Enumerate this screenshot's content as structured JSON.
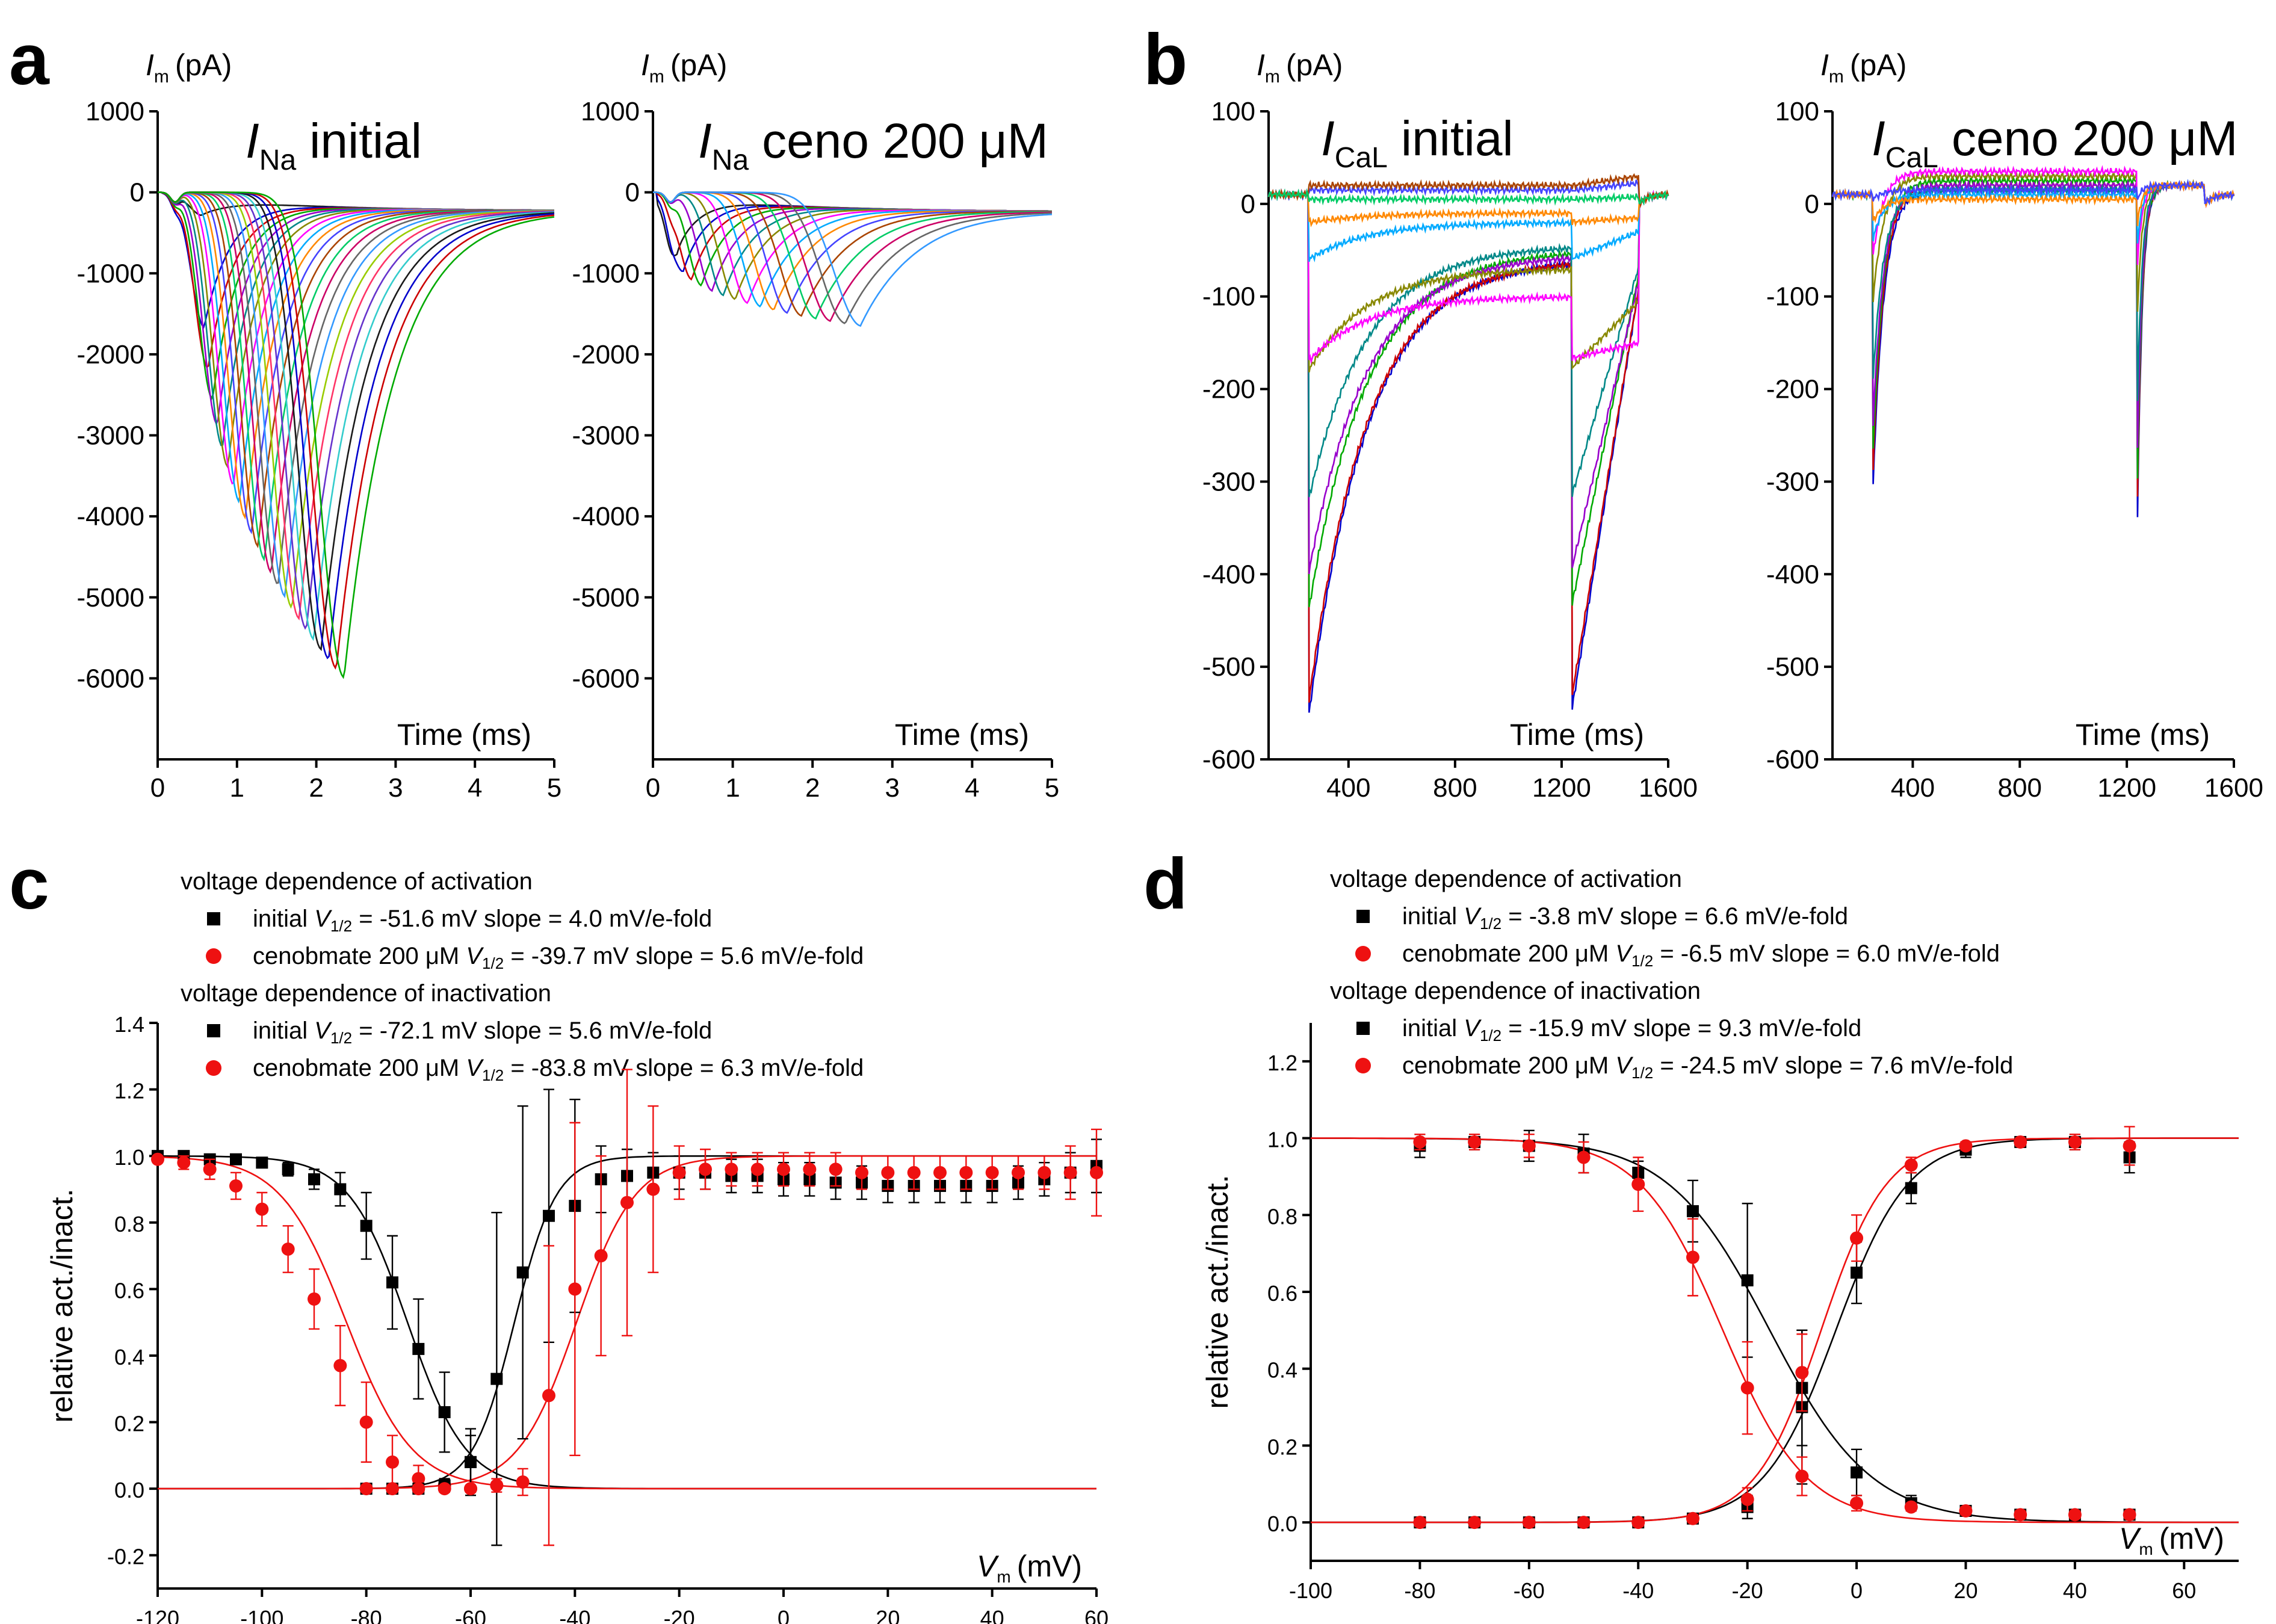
{
  "panels": {
    "a": "a",
    "b": "b",
    "c": "c",
    "d": "d"
  },
  "trace_colors": [
    "#1a1a1a",
    "#0000cc",
    "#cc0000",
    "#00aa00",
    "#9900cc",
    "#008888",
    "#888800",
    "#ff00ff",
    "#00aaff",
    "#ff8800",
    "#4444ff",
    "#aa4400",
    "#00cc66",
    "#cc0066",
    "#666666",
    "#3399ff",
    "#99cc00",
    "#ff3366",
    "#6633cc",
    "#33cccc"
  ],
  "colors": {
    "initial": "#000000",
    "ceno": "#ee1111"
  },
  "chart_data": [
    {
      "id": "a1",
      "type": "line",
      "ylabel_main": "I",
      "ylabel_sub": "m",
      "ylabel_unit": "(pA)",
      "title_main": "I",
      "title_sub": "Na",
      "title_rest": "initial",
      "xlabel": "Time (ms)",
      "xlim": [
        0,
        5
      ],
      "ylim": [
        -7000,
        1000
      ],
      "xticks": [
        "0",
        "1",
        "2",
        "3",
        "4",
        "5"
      ],
      "yticks": [
        "1000",
        "0",
        "-1000",
        "-2000",
        "-3000",
        "-4000",
        "-5000",
        "-6000"
      ],
      "traces": {
        "n": 24,
        "peak_time_start": 0.55,
        "peak_time_end": 2.35,
        "peak_amp_start": -250,
        "peak_amp_end": -5900,
        "final": -230
      }
    },
    {
      "id": "a2",
      "type": "line",
      "ylabel_main": "I",
      "ylabel_sub": "m",
      "ylabel_unit": "(pA)",
      "title_main": "I",
      "title_sub": "Na",
      "title_rest": "ceno 200 μM",
      "xlabel": "Time (ms)",
      "xlim": [
        0,
        5
      ],
      "ylim": [
        -7000,
        1000
      ],
      "xticks": [
        "0",
        "1",
        "2",
        "3",
        "4",
        "5"
      ],
      "yticks": [
        "1000",
        "0",
        "-1000",
        "-2000",
        "-3000",
        "-4000",
        "-5000",
        "-6000"
      ],
      "traces": {
        "n": 16,
        "peak_time_start": 0.3,
        "peak_time_end": 2.6,
        "peak_amp_start": -700,
        "peak_amp_end": -1550,
        "final": -240
      }
    },
    {
      "id": "b1",
      "type": "line",
      "ylabel_main": "I",
      "ylabel_sub": "m",
      "ylabel_unit": "(pA)",
      "title_main": "I",
      "title_sub": "CaL",
      "title_rest": "initial",
      "xlabel": "Time (ms)",
      "xlim": [
        100,
        1600
      ],
      "ylim": [
        -600,
        100
      ],
      "xticks": [
        "400",
        "800",
        "1200",
        "1600"
      ],
      "yticks": [
        "100",
        "0",
        "-100",
        "-200",
        "-300",
        "-400",
        "-500",
        "-600"
      ],
      "traces": {
        "n": 12,
        "peaks": [
          -555,
          -540,
          -440,
          -400,
          -320,
          -180,
          -170,
          -60,
          -20,
          15,
          20,
          5
        ],
        "steady": [
          -60,
          -60,
          -50,
          -55,
          -45,
          -70,
          -100,
          -20,
          -10,
          15,
          20,
          5
        ]
      }
    },
    {
      "id": "b2",
      "type": "line",
      "ylabel_main": "I",
      "ylabel_sub": "m",
      "ylabel_unit": "(pA)",
      "title_main": "I",
      "title_sub": "CaL",
      "title_rest": "ceno 200 μM",
      "xlabel": "Time (ms)",
      "xlim": [
        100,
        1600
      ],
      "ylim": [
        -600,
        100
      ],
      "xticks": [
        "400",
        "800",
        "1200",
        "1600"
      ],
      "yticks": [
        "100",
        "0",
        "-100",
        "-200",
        "-300",
        "-400",
        "-500",
        "-600"
      ],
      "traces": {
        "n": 10,
        "peaks": [
          -320,
          -300,
          -280,
          -250,
          -200,
          -110,
          -60,
          -40,
          -20,
          5
        ],
        "steady": [
          15,
          20,
          25,
          20,
          15,
          30,
          35,
          10,
          5,
          15
        ]
      }
    },
    {
      "id": "c",
      "type": "scatter",
      "xlabel_main": "V",
      "xlabel_sub": "m",
      "xlabel_unit": "(mV)",
      "ylabel": "relative act./inact.",
      "xlim": [
        -120,
        60
      ],
      "ylim": [
        -0.3,
        1.4
      ],
      "xticks": [
        "-120",
        "-100",
        "-80",
        "-60",
        "-40",
        "-20",
        "0",
        "20",
        "40",
        "60"
      ],
      "yticks": [
        "1.4",
        "1.2",
        "1.0",
        "0.8",
        "0.6",
        "0.4",
        "0.2",
        "0.0",
        "-0.2"
      ],
      "legend": {
        "act_header": "voltage dependence of activation",
        "act_init": {
          "label": "initial ",
          "V": "V",
          "sub": "1/2",
          "rest": " = -51.6 mV  slope = 4.0 mV/e-fold"
        },
        "act_ceno": {
          "label": "cenobmate 200 μM ",
          "V": "V",
          "sub": "1/2",
          "rest": " = -39.7 mV  slope = 5.6 mV/e-fold"
        },
        "inact_header": "voltage dependence of inactivation",
        "inact_init": {
          "label": "initial ",
          "V": "V",
          "sub": "1/2",
          "rest": " = -72.1 mV  slope = 5.6 mV/e-fold"
        },
        "inact_ceno": {
          "label": "cenobmate 200 μM ",
          "V": "V",
          "sub": "1/2",
          "rest": " = -83.8 mV  slope = 6.3 mV/e-fold"
        }
      },
      "fits": {
        "act_init": {
          "v12": -51.6,
          "k": 4.0
        },
        "act_ceno": {
          "v12": -39.7,
          "k": 5.6
        },
        "inact_init": {
          "v12": -72.1,
          "k": 5.6
        },
        "inact_ceno": {
          "v12": -83.8,
          "k": 6.3
        }
      },
      "series": [
        {
          "name": "inactivation initial",
          "color": "initial",
          "marker": "square",
          "x": [
            -120,
            -115,
            -110,
            -105,
            -100,
            -95,
            -90,
            -85,
            -80,
            -75,
            -70,
            -65,
            -60
          ],
          "y": [
            1.0,
            1.0,
            0.99,
            0.99,
            0.98,
            0.96,
            0.93,
            0.9,
            0.79,
            0.62,
            0.42,
            0.23,
            0.08
          ],
          "err": [
            0.01,
            0.01,
            0.01,
            0.01,
            0.01,
            0.02,
            0.03,
            0.05,
            0.1,
            0.14,
            0.15,
            0.12,
            0.08
          ]
        },
        {
          "name": "inactivation ceno",
          "color": "ceno",
          "marker": "circle",
          "x": [
            -120,
            -115,
            -110,
            -105,
            -100,
            -95,
            -90,
            -85,
            -80,
            -75,
            -70,
            -65,
            -60
          ],
          "y": [
            0.99,
            0.98,
            0.96,
            0.91,
            0.84,
            0.72,
            0.57,
            0.37,
            0.2,
            0.08,
            0.03,
            0.01,
            0.0
          ],
          "err": [
            0.01,
            0.02,
            0.03,
            0.04,
            0.05,
            0.07,
            0.09,
            0.12,
            0.12,
            0.08,
            0.04,
            0.02,
            0.01
          ]
        },
        {
          "name": "activation initial",
          "color": "initial",
          "marker": "square",
          "x": [
            -80,
            -75,
            -70,
            -65,
            -60,
            -55,
            -50,
            -45,
            -40,
            -35,
            -30,
            -25,
            -20,
            -15,
            -10,
            -5,
            0,
            5,
            10,
            15,
            20,
            25,
            30,
            35,
            40,
            45,
            50,
            55,
            60
          ],
          "y": [
            0.0,
            0.0,
            0.0,
            0.01,
            0.08,
            0.33,
            0.65,
            0.82,
            0.85,
            0.93,
            0.94,
            0.95,
            0.95,
            0.95,
            0.94,
            0.94,
            0.93,
            0.93,
            0.92,
            0.92,
            0.91,
            0.91,
            0.91,
            0.91,
            0.91,
            0.92,
            0.93,
            0.95,
            0.97
          ],
          "err": [
            0.01,
            0.01,
            0.01,
            0.02,
            0.1,
            0.5,
            0.5,
            0.38,
            0.32,
            0.1,
            0.08,
            0.06,
            0.05,
            0.05,
            0.05,
            0.05,
            0.05,
            0.05,
            0.05,
            0.05,
            0.05,
            0.05,
            0.05,
            0.05,
            0.05,
            0.05,
            0.05,
            0.06,
            0.08
          ]
        },
        {
          "name": "activation ceno",
          "color": "ceno",
          "marker": "circle",
          "x": [
            -80,
            -75,
            -70,
            -65,
            -60,
            -55,
            -50,
            -45,
            -40,
            -35,
            -30,
            -25,
            -20,
            -15,
            -10,
            -5,
            0,
            5,
            10,
            15,
            20,
            25,
            30,
            35,
            40,
            45,
            50,
            55,
            60
          ],
          "y": [
            0.0,
            0.0,
            0.0,
            0.0,
            0.0,
            0.01,
            0.02,
            0.28,
            0.6,
            0.7,
            0.86,
            0.9,
            0.95,
            0.96,
            0.96,
            0.96,
            0.96,
            0.96,
            0.96,
            0.95,
            0.95,
            0.95,
            0.95,
            0.95,
            0.95,
            0.95,
            0.95,
            0.95,
            0.95
          ],
          "err": [
            0.01,
            0.01,
            0.01,
            0.01,
            0.01,
            0.02,
            0.04,
            0.45,
            0.5,
            0.3,
            0.4,
            0.25,
            0.08,
            0.06,
            0.05,
            0.05,
            0.05,
            0.05,
            0.05,
            0.05,
            0.05,
            0.05,
            0.05,
            0.05,
            0.05,
            0.05,
            0.05,
            0.08,
            0.13
          ]
        }
      ]
    },
    {
      "id": "d",
      "type": "scatter",
      "xlabel_main": "V",
      "xlabel_sub": "m",
      "xlabel_unit": "(mV)",
      "ylabel": "relative act./inact.",
      "xlim": [
        -100,
        70
      ],
      "ylim": [
        -0.1,
        1.3
      ],
      "xticks": [
        "-100",
        "-80",
        "-60",
        "-40",
        "-20",
        "0",
        "20",
        "40",
        "60"
      ],
      "yticks": [
        "1.2",
        "1.0",
        "0.8",
        "0.6",
        "0.4",
        "0.2",
        "0.0"
      ],
      "legend": {
        "act_header": "voltage dependence of activation",
        "act_init": {
          "label": "initial ",
          "V": "V",
          "sub": "1/2",
          "rest": " = -3.8 mV  slope = 6.6 mV/e-fold"
        },
        "act_ceno": {
          "label": "cenobmate 200 μM ",
          "V": "V",
          "sub": "1/2",
          "rest": " = -6.5 mV  slope = 6.0 mV/e-fold"
        },
        "inact_header": "voltage dependence of inactivation",
        "inact_init": {
          "label": "initial ",
          "V": "V",
          "sub": "1/2",
          "rest": " = -15.9 mV  slope = 9.3 mV/e-fold"
        },
        "inact_ceno": {
          "label": "cenobmate 200 μM ",
          "V": "V",
          "sub": "1/2",
          "rest": " = -24.5 mV  slope = 7.6 mV/e-fold"
        }
      },
      "fits": {
        "act_init": {
          "v12": -3.8,
          "k": 6.6
        },
        "act_ceno": {
          "v12": -6.5,
          "k": 6.0
        },
        "inact_init": {
          "v12": -15.9,
          "k": 9.3
        },
        "inact_ceno": {
          "v12": -24.5,
          "k": 7.6
        }
      },
      "series": [
        {
          "name": "inactivation initial",
          "color": "initial",
          "marker": "square",
          "x": [
            -80,
            -70,
            -60,
            -50,
            -40,
            -30,
            -20,
            -10,
            0,
            10,
            20,
            30,
            40,
            50
          ],
          "y": [
            0.98,
            0.99,
            0.98,
            0.96,
            0.91,
            0.81,
            0.63,
            0.3,
            0.13,
            0.05,
            0.03,
            0.02,
            0.02,
            0.02
          ],
          "err": [
            0.03,
            0.02,
            0.04,
            0.05,
            0.03,
            0.08,
            0.2,
            0.2,
            0.06,
            0.02,
            0.01,
            0.01,
            0.01,
            0.01
          ]
        },
        {
          "name": "inactivation ceno",
          "color": "ceno",
          "marker": "circle",
          "x": [
            -80,
            -70,
            -60,
            -50,
            -40,
            -30,
            -20,
            -10,
            0,
            10,
            20,
            30,
            40,
            50
          ],
          "y": [
            0.99,
            0.99,
            0.98,
            0.95,
            0.88,
            0.69,
            0.35,
            0.12,
            0.05,
            0.04,
            0.03,
            0.02,
            0.02,
            0.02
          ],
          "err": [
            0.02,
            0.02,
            0.03,
            0.04,
            0.07,
            0.1,
            0.12,
            0.05,
            0.02,
            0.01,
            0.01,
            0.01,
            0.01,
            0.01
          ]
        },
        {
          "name": "activation initial",
          "color": "initial",
          "marker": "square",
          "x": [
            -80,
            -70,
            -60,
            -50,
            -40,
            -30,
            -20,
            -10,
            0,
            10,
            20,
            30,
            40,
            50
          ],
          "y": [
            0.0,
            0.0,
            0.0,
            0.0,
            0.0,
            0.01,
            0.04,
            0.35,
            0.65,
            0.87,
            0.97,
            0.99,
            0.99,
            0.95
          ],
          "err": [
            0.01,
            0.01,
            0.01,
            0.01,
            0.01,
            0.01,
            0.03,
            0.15,
            0.08,
            0.04,
            0.02,
            0.01,
            0.02,
            0.04
          ]
        },
        {
          "name": "activation ceno",
          "color": "ceno",
          "marker": "circle",
          "x": [
            -80,
            -70,
            -60,
            -50,
            -40,
            -30,
            -20,
            -10,
            0,
            10,
            20,
            30,
            40,
            50
          ],
          "y": [
            0.0,
            0.0,
            0.0,
            0.0,
            0.0,
            0.01,
            0.06,
            0.39,
            0.74,
            0.93,
            0.98,
            0.99,
            0.99,
            0.98
          ],
          "err": [
            0.01,
            0.01,
            0.01,
            0.01,
            0.01,
            0.01,
            0.03,
            0.1,
            0.06,
            0.02,
            0.01,
            0.01,
            0.02,
            0.05
          ]
        }
      ]
    }
  ]
}
